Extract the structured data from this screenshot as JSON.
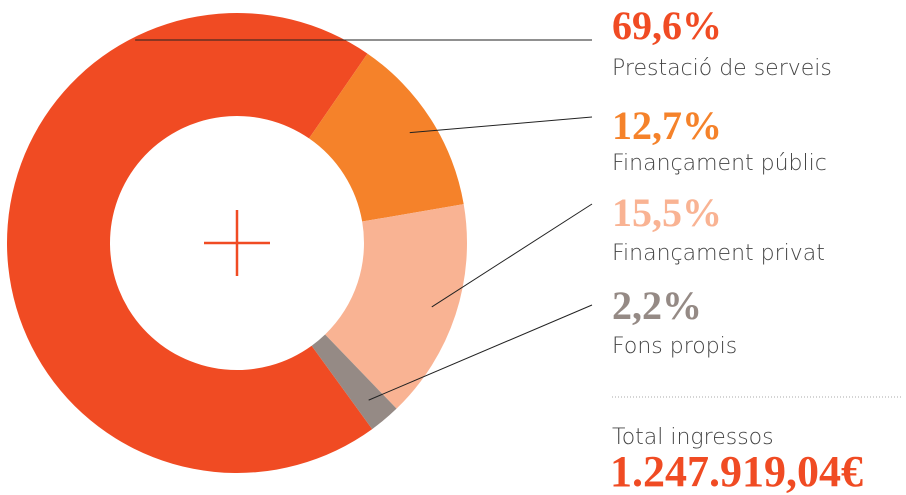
{
  "chart_data": {
    "type": "donut",
    "categories": [
      "Prestació de serveis",
      "Finançament públic",
      "Finançament privat",
      "Fons propis"
    ],
    "values": [
      69.6,
      12.7,
      15.5,
      2.2
    ],
    "value_labels": [
      "69,6%",
      "12,7%",
      "15,5%",
      "2,2%"
    ],
    "colors": [
      "#f04b23",
      "#f5822a",
      "#f9b393",
      "#958a85"
    ],
    "total_label": "Total ingressos",
    "total_text": "1.247.919,04€",
    "total_color": "#f04b23"
  }
}
